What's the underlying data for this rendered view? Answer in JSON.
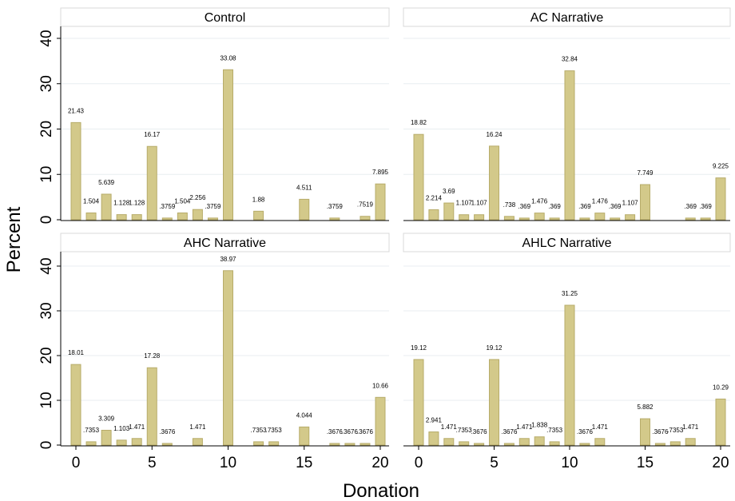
{
  "chart_data": {
    "type": "bar",
    "xlabel": "Donation",
    "ylabel": "Percent",
    "xlim": [
      0,
      20
    ],
    "ylim": [
      0,
      40
    ],
    "x_ticks": [
      "0",
      "5",
      "10",
      "15",
      "20"
    ],
    "y_ticks": [
      "0",
      "10",
      "20",
      "30",
      "40"
    ],
    "grid": true,
    "bar_color": "#d3c98a",
    "bar_stroke": "#b7ac6a",
    "panel_header_fill": "#ffffff",
    "panels": [
      {
        "title": "Control",
        "bars": [
          {
            "x": 0,
            "value": 21.43,
            "label": "21.43"
          },
          {
            "x": 1,
            "value": 1.504,
            "label": "1.504"
          },
          {
            "x": 2,
            "value": 5.639,
            "label": "5.639"
          },
          {
            "x": 3,
            "value": 1.128,
            "label": "1.128"
          },
          {
            "x": 4,
            "value": 1.128,
            "label": "1.128"
          },
          {
            "x": 5,
            "value": 16.17,
            "label": "16.17"
          },
          {
            "x": 6,
            "value": 0.3759,
            "label": ".3759"
          },
          {
            "x": 7,
            "value": 1.504,
            "label": "1.504"
          },
          {
            "x": 8,
            "value": 2.256,
            "label": "2.256"
          },
          {
            "x": 9,
            "value": 0.3759,
            "label": ".3759"
          },
          {
            "x": 10,
            "value": 33.08,
            "label": "33.08"
          },
          {
            "x": 12,
            "value": 1.88,
            "label": "1.88"
          },
          {
            "x": 15,
            "value": 4.511,
            "label": "4.511"
          },
          {
            "x": 17,
            "value": 0.3759,
            "label": ".3759"
          },
          {
            "x": 19,
            "value": 0.7519,
            "label": ".7519"
          },
          {
            "x": 20,
            "value": 7.895,
            "label": "7.895"
          }
        ]
      },
      {
        "title": "AC Narrative",
        "bars": [
          {
            "x": 0,
            "value": 18.82,
            "label": "18.82"
          },
          {
            "x": 1,
            "value": 2.214,
            "label": "2.214"
          },
          {
            "x": 2,
            "value": 3.69,
            "label": "3.69"
          },
          {
            "x": 3,
            "value": 1.107,
            "label": "1.107"
          },
          {
            "x": 4,
            "value": 1.107,
            "label": "1.107"
          },
          {
            "x": 5,
            "value": 16.24,
            "label": "16.24"
          },
          {
            "x": 6,
            "value": 0.738,
            "label": ".738"
          },
          {
            "x": 7,
            "value": 0.369,
            "label": ".369"
          },
          {
            "x": 8,
            "value": 1.476,
            "label": "1.476"
          },
          {
            "x": 9,
            "value": 0.369,
            "label": ".369"
          },
          {
            "x": 10,
            "value": 32.84,
            "label": "32.84"
          },
          {
            "x": 11,
            "value": 0.369,
            "label": ".369"
          },
          {
            "x": 12,
            "value": 1.476,
            "label": "1.476"
          },
          {
            "x": 13,
            "value": 0.369,
            "label": ".369"
          },
          {
            "x": 14,
            "value": 1.107,
            "label": "1.107"
          },
          {
            "x": 15,
            "value": 7.749,
            "label": "7.749"
          },
          {
            "x": 18,
            "value": 0.369,
            "label": ".369"
          },
          {
            "x": 19,
            "value": 0.369,
            "label": ".369"
          },
          {
            "x": 20,
            "value": 9.225,
            "label": "9.225"
          }
        ]
      },
      {
        "title": "AHC Narrative",
        "bars": [
          {
            "x": 0,
            "value": 18.01,
            "label": "18.01"
          },
          {
            "x": 1,
            "value": 0.7353,
            "label": ".7353"
          },
          {
            "x": 2,
            "value": 3.309,
            "label": "3.309"
          },
          {
            "x": 3,
            "value": 1.103,
            "label": "1.103"
          },
          {
            "x": 4,
            "value": 1.471,
            "label": "1.471"
          },
          {
            "x": 5,
            "value": 17.28,
            "label": "17.28"
          },
          {
            "x": 6,
            "value": 0.3676,
            "label": ".3676"
          },
          {
            "x": 8,
            "value": 1.471,
            "label": "1.471"
          },
          {
            "x": 10,
            "value": 38.97,
            "label": "38.97"
          },
          {
            "x": 12,
            "value": 0.7353,
            "label": ".7353"
          },
          {
            "x": 13,
            "value": 0.7353,
            "label": ".7353"
          },
          {
            "x": 15,
            "value": 4.044,
            "label": "4.044"
          },
          {
            "x": 17,
            "value": 0.3676,
            "label": ".3676"
          },
          {
            "x": 18,
            "value": 0.3676,
            "label": ".3676"
          },
          {
            "x": 19,
            "value": 0.3676,
            "label": ".3676"
          },
          {
            "x": 20,
            "value": 10.66,
            "label": "10.66"
          }
        ]
      },
      {
        "title": "AHLC Narrative",
        "bars": [
          {
            "x": 0,
            "value": 19.12,
            "label": "19.12"
          },
          {
            "x": 1,
            "value": 2.941,
            "label": "2.941"
          },
          {
            "x": 2,
            "value": 1.471,
            "label": "1.471"
          },
          {
            "x": 3,
            "value": 0.7353,
            "label": ".7353"
          },
          {
            "x": 4,
            "value": 0.3676,
            "label": ".3676"
          },
          {
            "x": 5,
            "value": 19.12,
            "label": "19.12"
          },
          {
            "x": 6,
            "value": 0.3676,
            "label": ".3676"
          },
          {
            "x": 7,
            "value": 1.471,
            "label": "1.471"
          },
          {
            "x": 8,
            "value": 1.838,
            "label": "1.838"
          },
          {
            "x": 9,
            "value": 0.7353,
            "label": ".7353"
          },
          {
            "x": 10,
            "value": 31.25,
            "label": "31.25"
          },
          {
            "x": 11,
            "value": 0.3676,
            "label": ".3676"
          },
          {
            "x": 12,
            "value": 1.471,
            "label": "1.471"
          },
          {
            "x": 15,
            "value": 5.882,
            "label": "5.882"
          },
          {
            "x": 16,
            "value": 0.3676,
            "label": ".3676"
          },
          {
            "x": 17,
            "value": 0.7353,
            "label": ".7353"
          },
          {
            "x": 18,
            "value": 1.471,
            "label": "1.471"
          },
          {
            "x": 20,
            "value": 10.29,
            "label": "10.29"
          }
        ]
      }
    ]
  }
}
